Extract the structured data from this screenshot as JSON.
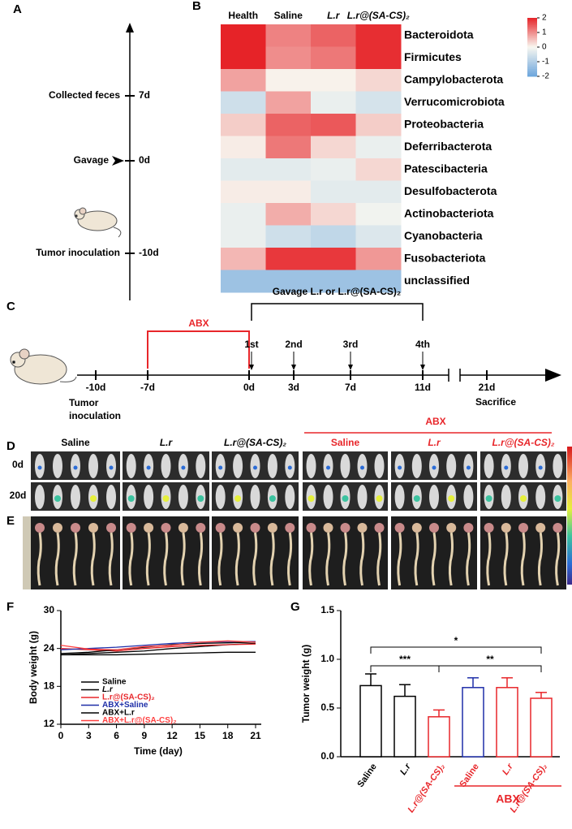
{
  "panel_labels": [
    "A",
    "B",
    "C",
    "D",
    "E",
    "F",
    "G"
  ],
  "timeline_a": {
    "events": [
      {
        "label": "Collected feces",
        "day": "7d"
      },
      {
        "label": "Gavage",
        "day": "0d"
      },
      {
        "label": "Tumor inoculation",
        "day": "-10d"
      }
    ]
  },
  "timeline_c": {
    "gavage_label": "Gavage L.r or L.r@(SA-CS)₂",
    "abx_label": "ABX",
    "doses": [
      "1st",
      "2nd",
      "3rd",
      "4th"
    ],
    "days": [
      "-10d",
      "-7d",
      "0d",
      "3d",
      "7d",
      "11d",
      "21d"
    ],
    "start_label": [
      "Tumor",
      "inoculation"
    ],
    "end_label": "Sacrifice"
  },
  "imaging": {
    "abx_label": "ABX",
    "groups": [
      "Saline",
      "L.r",
      "L.r@(SA-CS)₂",
      "Saline",
      "L.r",
      "L.r@(SA-CS)₂"
    ],
    "group_colors": [
      "#000000",
      "#000000",
      "#000000",
      "#e8262a",
      "#e8262a",
      "#e8262a"
    ],
    "rows": [
      "0d",
      "20d"
    ]
  },
  "chart_data": [
    {
      "type": "heatmap",
      "columns": [
        "Health",
        "Saline",
        "L.r",
        "L.r@(SA-CS)₂"
      ],
      "rows": [
        "Bacteroidota",
        "Firmicutes",
        "Campylobacterota",
        "Verrucomicrobiota",
        "Proteobacteria",
        "Deferribacterota",
        "Patescibacteria",
        "Desulfobacterota",
        "Actinobacteriota",
        "Cyanobacteria",
        "Fusobacteriota",
        "unclassified"
      ],
      "values": [
        [
          2.0,
          1.1,
          1.4,
          1.9
        ],
        [
          2.0,
          1.0,
          1.2,
          1.9
        ],
        [
          0.8,
          0.05,
          0.05,
          0.3
        ],
        [
          -0.6,
          0.8,
          -0.2,
          -0.5
        ],
        [
          0.4,
          1.4,
          1.5,
          0.4
        ],
        [
          0.1,
          1.2,
          0.3,
          -0.2
        ],
        [
          -0.3,
          -0.3,
          -0.2,
          0.3
        ],
        [
          0.1,
          0.1,
          -0.3,
          -0.3
        ],
        [
          -0.2,
          0.7,
          0.3,
          -0.1
        ],
        [
          -0.2,
          -0.6,
          -0.8,
          -0.4
        ],
        [
          0.6,
          1.8,
          1.8,
          0.9
        ],
        [
          -1.3,
          -1.3,
          -1.3,
          -1.3
        ]
      ],
      "zlim": [
        -2,
        2
      ],
      "zticks": [
        -2,
        -1,
        0,
        1,
        2
      ]
    },
    {
      "type": "line",
      "x": [
        0,
        3,
        6,
        9,
        12,
        15,
        18,
        21
      ],
      "xlim": [
        0,
        21
      ],
      "xticks": [
        0,
        3,
        6,
        9,
        12,
        15,
        18,
        21
      ],
      "ylim": [
        12,
        30
      ],
      "yticks": [
        12,
        18,
        24,
        30
      ],
      "xlabel": "Time (day)",
      "ylabel": "Body weight (g)",
      "series": [
        {
          "name": "Saline",
          "color": "#000000",
          "values": [
            23.0,
            23.2,
            23.4,
            23.6,
            24.0,
            24.3,
            24.6,
            24.8
          ]
        },
        {
          "name": "L.r",
          "color": "#000000",
          "values": [
            23.0,
            23.0,
            23.0,
            23.1,
            23.2,
            23.3,
            23.4,
            23.4
          ]
        },
        {
          "name": "L.r@(SA-CS)₂",
          "color": "#e8262a",
          "values": [
            24.0,
            23.8,
            23.6,
            24.0,
            24.3,
            24.5,
            24.6,
            24.7
          ]
        },
        {
          "name": "ABX+Saline",
          "color": "#1f2fa8",
          "values": [
            23.8,
            24.0,
            24.2,
            24.5,
            24.8,
            25.0,
            25.1,
            25.1
          ]
        },
        {
          "name": "ABX+L.r",
          "color": "#000000",
          "values": [
            23.2,
            23.4,
            23.8,
            24.2,
            24.6,
            24.8,
            24.9,
            25.0
          ]
        },
        {
          "name": "ABX+L.r@(SA-CS)₂",
          "color": "#ff4040",
          "values": [
            24.5,
            23.9,
            23.8,
            24.3,
            24.5,
            25.0,
            25.2,
            25.0
          ]
        }
      ]
    },
    {
      "type": "bar",
      "categories": [
        "Saline",
        "L.r",
        "L.r@(SA-CS)₂",
        "Saline",
        "L.r",
        "L.r@(SA-CS)₂"
      ],
      "values": [
        0.73,
        0.62,
        0.41,
        0.71,
        0.71,
        0.6
      ],
      "errors": [
        0.12,
        0.12,
        0.07,
        0.1,
        0.1,
        0.06
      ],
      "colors": [
        "#000000",
        "#000000",
        "#e8262a",
        "#1f2fa8",
        "#e8262a",
        "#e8262a"
      ],
      "label_colors": [
        "#000000",
        "#000000",
        "#e8262a",
        "#e8262a",
        "#e8262a",
        "#e8262a"
      ],
      "ylim": [
        0,
        1.5
      ],
      "yticks": [
        {
          "value": 0,
          "label": "0.0"
        },
        0.5,
        {
          "value": 1,
          "label": "1.0"
        },
        1.5
      ],
      "ylabel": "Tumor weight (g)",
      "annotations": [
        "***",
        "*",
        "**"
      ],
      "group_label": "ABX"
    }
  ]
}
